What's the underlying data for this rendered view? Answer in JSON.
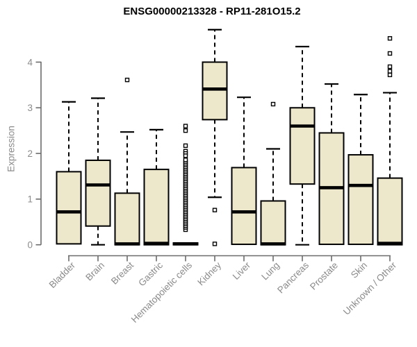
{
  "chart_data": {
    "type": "boxplot",
    "title": "ENSG00000213328 - RP11-281O15.2",
    "ylabel": "Expression",
    "xlabel": "",
    "ylim": [
      0,
      4.8
    ],
    "yticks": [
      0,
      1,
      2,
      3,
      4
    ],
    "grid": false,
    "legend": "none",
    "categories": [
      "Bladder",
      "Brain",
      "Breast",
      "Gastric",
      "Hematopoietic cells",
      "Kidney",
      "Liver",
      "Lung",
      "Pancreas",
      "Prostate",
      "Skin",
      "Unknown / Other"
    ],
    "series": [
      {
        "name": "Bladder",
        "min": 0.02,
        "q1": 0.02,
        "median": 0.72,
        "q3": 1.6,
        "max": 3.13,
        "outliers": []
      },
      {
        "name": "Brain",
        "min": 0.0,
        "q1": 0.41,
        "median": 1.31,
        "q3": 1.85,
        "max": 3.21,
        "outliers": []
      },
      {
        "name": "Breast",
        "min": 0.0,
        "q1": 0.0,
        "median": 0.02,
        "q3": 1.13,
        "max": 2.47,
        "outliers": [
          3.61
        ]
      },
      {
        "name": "Gastric",
        "min": 0.0,
        "q1": 0.0,
        "median": 0.03,
        "q3": 1.65,
        "max": 2.52,
        "outliers": []
      },
      {
        "name": "Hematopoietic cells",
        "min": 0.0,
        "q1": 0.0,
        "median": 0.02,
        "q3": 0.04,
        "max": 0.06,
        "outliers": [
          2.6,
          2.5,
          2.17,
          2.05,
          2.0,
          1.95,
          0.33
        ],
        "outlier_band": {
          "from": 0.38,
          "to": 1.86,
          "count": 40
        }
      },
      {
        "name": "Kidney",
        "min": 1.04,
        "q1": 2.74,
        "median": 3.41,
        "q3": 4.0,
        "max": 4.71,
        "outliers": [
          0.76,
          0.02
        ]
      },
      {
        "name": "Liver",
        "min": 0.01,
        "q1": 0.01,
        "median": 0.72,
        "q3": 1.69,
        "max": 3.23,
        "outliers": []
      },
      {
        "name": "Lung",
        "min": 0.0,
        "q1": 0.0,
        "median": 0.02,
        "q3": 0.96,
        "max": 2.1,
        "outliers": [
          3.08
        ]
      },
      {
        "name": "Pancreas",
        "min": 0.0,
        "q1": 1.33,
        "median": 2.6,
        "q3": 3.0,
        "max": 4.34,
        "outliers": []
      },
      {
        "name": "Prostate",
        "min": 0.01,
        "q1": 0.01,
        "median": 1.25,
        "q3": 2.45,
        "max": 3.52,
        "outliers": []
      },
      {
        "name": "Skin",
        "min": 0.01,
        "q1": 0.01,
        "median": 1.3,
        "q3": 1.97,
        "max": 3.29,
        "outliers": []
      },
      {
        "name": "Unknown / Other",
        "min": 0.0,
        "q1": 0.0,
        "median": 0.03,
        "q3": 1.46,
        "max": 3.33,
        "outliers": [
          4.52,
          4.19,
          3.9,
          3.8,
          3.72
        ]
      }
    ],
    "colors": {
      "box_fill": "#EDE7CB",
      "box_border": "#000000",
      "median": "#000000",
      "whisker": "#000000",
      "axis_line": "#6b6b6b",
      "axis_text": "#8a8a8a",
      "title": "#000000",
      "background": "#ffffff"
    }
  }
}
